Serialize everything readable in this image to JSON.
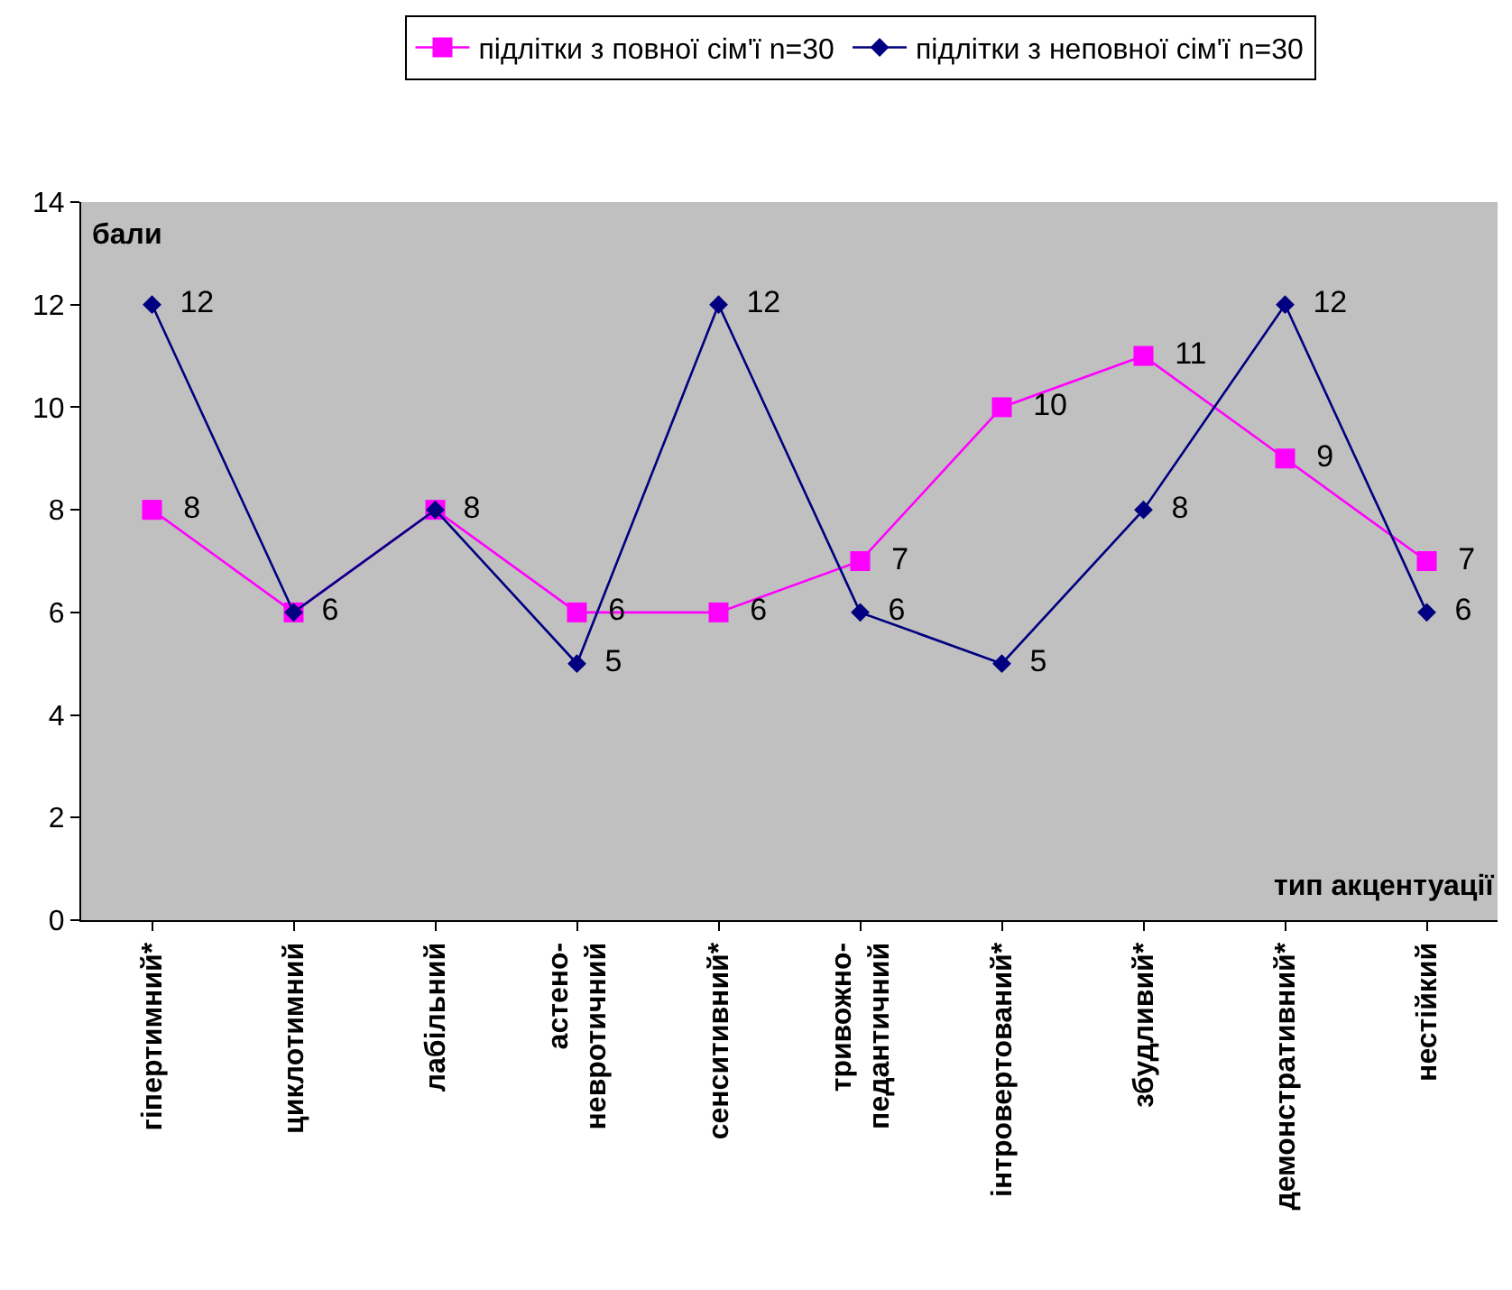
{
  "chart_data": {
    "type": "line",
    "xlabel": "тип акцентуації",
    "ylabel": "бали",
    "categories": [
      "гіпертимний*",
      "циклотимний",
      "лабільний",
      "астено-\nневротичний",
      "сенситивний*",
      "тривожно-\nпедантичний",
      "інтровертований*",
      "збудливий*",
      "демонстративний*",
      "нестійкий"
    ],
    "series": [
      {
        "name": "підлітки з повної сім'ї n=30",
        "color": "#ff00ff",
        "marker": "square",
        "values": [
          8,
          6,
          8,
          6,
          6,
          7,
          10,
          11,
          9,
          7
        ],
        "value_labels": [
          "8",
          null,
          null,
          "6",
          "6",
          "7",
          "10",
          "11",
          "9",
          "7"
        ]
      },
      {
        "name": "підлітки з неповної сім'ї n=30",
        "color": "#000080",
        "marker": "diamond",
        "values": [
          12,
          6,
          8,
          5,
          12,
          6,
          5,
          8,
          12,
          6
        ],
        "value_labels": [
          "12",
          "6",
          "8",
          "5",
          "12",
          "6",
          "5",
          "8",
          "12",
          "6"
        ]
      }
    ],
    "ylim": [
      0,
      14
    ],
    "yticks": [
      0,
      2,
      4,
      6,
      8,
      10,
      12,
      14
    ],
    "grid": false,
    "legend": "top",
    "line_style": "solid"
  }
}
